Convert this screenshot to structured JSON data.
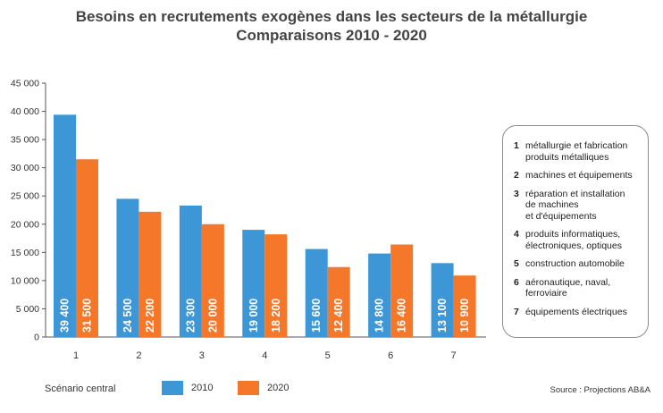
{
  "title_line1": "Besoins en recrutements exogènes dans les secteurs de la métallurgie",
  "title_line2": "Comparaisons 2010 - 2020",
  "chart_data": {
    "type": "bar",
    "categories": [
      "1",
      "2",
      "3",
      "4",
      "5",
      "6",
      "7"
    ],
    "series": [
      {
        "name": "2010",
        "color": "#3d96d6",
        "values": [
          39400,
          24500,
          23300,
          19000,
          15600,
          14800,
          13100
        ]
      },
      {
        "name": "2020",
        "color": "#f5782a",
        "values": [
          31500,
          22200,
          20000,
          18200,
          12400,
          16400,
          10900
        ]
      }
    ],
    "value_labels": [
      [
        "39 400",
        "24 500",
        "23 300",
        "19 000",
        "15 600",
        "14 800",
        "13 100"
      ],
      [
        "31 500",
        "22 200",
        "20 000",
        "18 200",
        "12 400",
        "16 400",
        "10 900"
      ]
    ],
    "ylim": [
      0,
      45000
    ],
    "yticks": [
      0,
      5000,
      10000,
      15000,
      20000,
      25000,
      30000,
      35000,
      40000,
      45000
    ],
    "ytick_labels": [
      "0",
      "5 000",
      "10 000",
      "15 000",
      "20 000",
      "25 000",
      "30 000",
      "35 000",
      "40 000",
      "45 000"
    ],
    "grid": false
  },
  "sector_legend": [
    {
      "num": "1",
      "text": "métallurgie et fabrication\nproduits métalliques"
    },
    {
      "num": "2",
      "text": "machines et équipements"
    },
    {
      "num": "3",
      "text": "réparation et installation\nde machines\net d'équipements"
    },
    {
      "num": "4",
      "text": "produits informatiques,\nélectroniques, optiques"
    },
    {
      "num": "5",
      "text": "construction automobile"
    },
    {
      "num": "6",
      "text": "aéronautique, naval,\nferroviaire"
    },
    {
      "num": "7",
      "text": "équipements électriques"
    }
  ],
  "scenario_label": "Scénario central",
  "source_label": "Source : Projections AB&A"
}
